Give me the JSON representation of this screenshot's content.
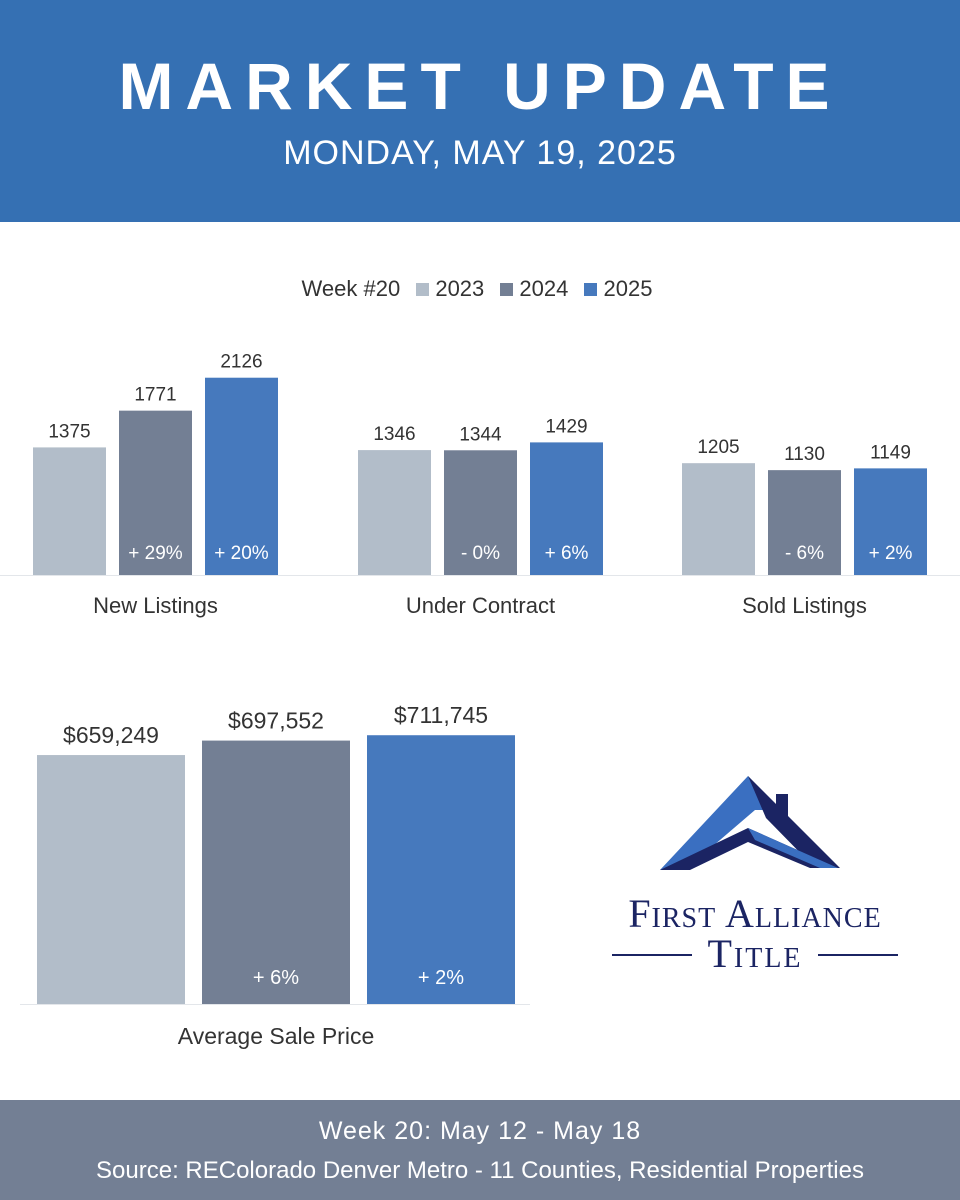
{
  "header": {
    "title": "MARKET UPDATE",
    "date": "MONDAY, MAY 19, 2025"
  },
  "legend": {
    "label": "Week #20",
    "entries": [
      "2023",
      "2024",
      "2025"
    ]
  },
  "colors": {
    "header_bg": "#3570b3",
    "footer_bg": "#737f94",
    "y2023": "#b2bdc9",
    "y2024": "#737f94",
    "y2025": "#4679bd",
    "logo_navy": "#1b2463",
    "logo_blue": "#3a6fc1"
  },
  "chart_data": [
    {
      "type": "bar",
      "ylim": [
        0,
        2500
      ],
      "series_names": [
        "2023",
        "2024",
        "2025"
      ],
      "groups": [
        {
          "category": "New Listings",
          "values": [
            1375,
            1771,
            2126
          ],
          "changes": [
            "",
            "+ 29%",
            "+ 20%"
          ]
        },
        {
          "category": "Under Contract",
          "values": [
            1346,
            1344,
            1429
          ],
          "changes": [
            "",
            "- 0%",
            "+ 6%"
          ]
        },
        {
          "category": "Sold Listings",
          "values": [
            1205,
            1130,
            1149
          ],
          "changes": [
            "",
            "- 6%",
            "+ 2%"
          ]
        }
      ]
    },
    {
      "type": "bar",
      "ylim": [
        0,
        760000
      ],
      "series_names": [
        "2023",
        "2024",
        "2025"
      ],
      "groups": [
        {
          "category": "Average Sale Price",
          "values": [
            659249,
            697552,
            711745
          ],
          "labels": [
            "$659,249",
            "$697,552",
            "$711,745"
          ],
          "changes": [
            "",
            "+ 6%",
            "+ 2%"
          ]
        }
      ]
    }
  ],
  "logo": {
    "line1": "First Alliance",
    "line2": "Title"
  },
  "footer": {
    "week": "Week 20: May 12 - May 18",
    "source": "Source: REColorado Denver Metro - 11 Counties, Residential Properties"
  }
}
